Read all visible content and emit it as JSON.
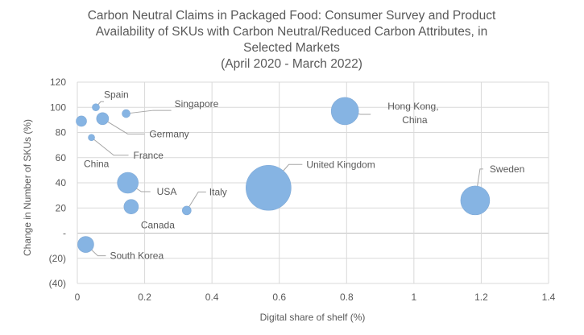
{
  "chart_data": {
    "type": "scatter",
    "title_lines": [
      "Carbon Neutral Claims in Packaged Food: Consumer Survey and Product",
      "Availability of SKUs with Carbon Neutral/Reduced Carbon Attributes, in",
      "Selected Markets",
      "(April 2020 - March 2022)"
    ],
    "xlabel": "Digital share of shelf (%)",
    "ylabel": "Change in Number of SKUs (%)",
    "xlim": [
      0,
      1.4
    ],
    "ylim": [
      -40,
      120
    ],
    "x_ticks": [
      {
        "value": 0,
        "label": "0"
      },
      {
        "value": 0.2,
        "label": "0.2"
      },
      {
        "value": 0.4,
        "label": "0.4"
      },
      {
        "value": 0.6,
        "label": "0.6"
      },
      {
        "value": 0.8,
        "label": "0.8"
      },
      {
        "value": 1.0,
        "label": "1"
      },
      {
        "value": 1.2,
        "label": "1.2"
      },
      {
        "value": 1.4,
        "label": "1.4"
      }
    ],
    "y_ticks": [
      {
        "value": 120,
        "label": "120"
      },
      {
        "value": 100,
        "label": "100"
      },
      {
        "value": 80,
        "label": "80"
      },
      {
        "value": 60,
        "label": "60"
      },
      {
        "value": 40,
        "label": "40"
      },
      {
        "value": 20,
        "label": "20"
      },
      {
        "value": 0,
        "label": "-"
      },
      {
        "value": -20,
        "label": "(20)"
      },
      {
        "value": -40,
        "label": "(40)"
      }
    ],
    "grid": true,
    "bubble_color": "#86B4E3",
    "points": [
      {
        "label": "Spain",
        "x": 0.055,
        "y": 100,
        "size": 4.5
      },
      {
        "label": "Singapore",
        "x": 0.145,
        "y": 95,
        "size": 5
      },
      {
        "label": "China",
        "x": 0.012,
        "y": 89,
        "size": 6.5
      },
      {
        "label": "Germany",
        "x": 0.075,
        "y": 91,
        "size": 7.5
      },
      {
        "label": "France",
        "x": 0.042,
        "y": 76,
        "size": 4
      },
      {
        "label": "USA",
        "x": 0.15,
        "y": 40,
        "size": 13
      },
      {
        "label": "Canada",
        "x": 0.16,
        "y": 21,
        "size": 9
      },
      {
        "label": "Italy",
        "x": 0.325,
        "y": 18,
        "size": 5.5
      },
      {
        "label": "United Kingdom",
        "x": 0.568,
        "y": 36,
        "size": 28
      },
      {
        "label": "Hong Kong, China",
        "x": 0.795,
        "y": 97,
        "size": 17
      },
      {
        "label": "Sweden",
        "x": 1.182,
        "y": 26,
        "size": 18
      },
      {
        "label": "South Korea",
        "x": 0.025,
        "y": -9,
        "size": 10
      }
    ]
  }
}
